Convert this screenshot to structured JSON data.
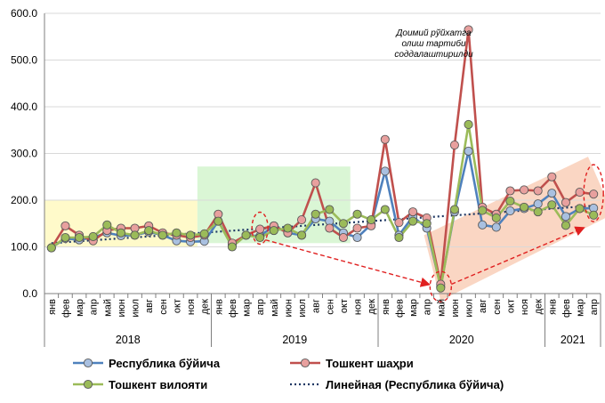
{
  "chart_data": {
    "type": "line",
    "ylim": [
      0,
      600
    ],
    "y_ticks": [
      "0.0",
      "100.0",
      "200.0",
      "300.0",
      "400.0",
      "500.0",
      "600.0"
    ],
    "grid": true,
    "legend_position": "bottom",
    "categories": [
      "янв",
      "фев",
      "мар",
      "апр",
      "май",
      "июн",
      "июл",
      "авг",
      "сен",
      "окт",
      "ноя",
      "дек",
      "янв",
      "фев",
      "мар",
      "апр",
      "май",
      "июн",
      "июл",
      "авг",
      "сен",
      "окт",
      "ноя",
      "дек",
      "янв",
      "фев",
      "мар",
      "апр",
      "май",
      "июн",
      "июл",
      "авг",
      "сен",
      "окт",
      "ноя",
      "дек",
      "янв",
      "фев",
      "мар",
      "апр"
    ],
    "years": [
      {
        "label": "2018",
        "start": 0,
        "end": 11
      },
      {
        "label": "2019",
        "start": 12,
        "end": 23
      },
      {
        "label": "2020",
        "start": 24,
        "end": 35
      },
      {
        "label": "2021",
        "start": 36,
        "end": 39
      }
    ],
    "series": [
      {
        "name": "Республика бўйича",
        "color": "#4f81bd",
        "marker_fill": "#a9c0e0",
        "values": [
          98,
          118,
          115,
          120,
          130,
          124,
          125,
          132,
          125,
          113,
          111,
          112,
          155,
          103,
          125,
          123,
          145,
          130,
          125,
          160,
          155,
          130,
          120,
          148,
          262,
          125,
          165,
          140,
          15,
          175,
          305,
          147,
          142,
          177,
          182,
          192,
          215,
          165,
          182,
          183
        ]
      },
      {
        "name": "Тошкент шаҳри",
        "color": "#c0504d",
        "marker_fill": "#e8a09e",
        "values": [
          98,
          145,
          125,
          113,
          135,
          140,
          140,
          145,
          130,
          125,
          120,
          125,
          170,
          108,
          125,
          138,
          145,
          130,
          158,
          237,
          140,
          120,
          140,
          145,
          330,
          152,
          175,
          162,
          20,
          318,
          565,
          185,
          170,
          220,
          222,
          220,
          250,
          195,
          217,
          213
        ]
      },
      {
        "name": "Тошкент вилояти",
        "color": "#9bbb59",
        "marker_fill": "#9bbb59",
        "values": [
          98,
          120,
          120,
          122,
          147,
          130,
          125,
          135,
          125,
          130,
          125,
          128,
          155,
          100,
          125,
          120,
          135,
          140,
          125,
          170,
          180,
          150,
          170,
          158,
          180,
          120,
          155,
          150,
          12,
          180,
          362,
          178,
          162,
          198,
          185,
          175,
          190,
          146,
          182,
          168
        ]
      }
    ],
    "trendline": {
      "name": "Линейная (Республика бўйича)",
      "color": "#1f3864",
      "start_value": 108,
      "end_value": 188
    },
    "annotation": {
      "lines": [
        "Доимий рўйхатга",
        "олиш тартиби",
        "соддалаштирилди"
      ]
    },
    "highlight_colors": {
      "year_2018": "#fff9c4",
      "year_2019": "#d6f5d0",
      "year_2020_2021": "#f9cfb8",
      "dashed_marker": "#e02020"
    }
  }
}
